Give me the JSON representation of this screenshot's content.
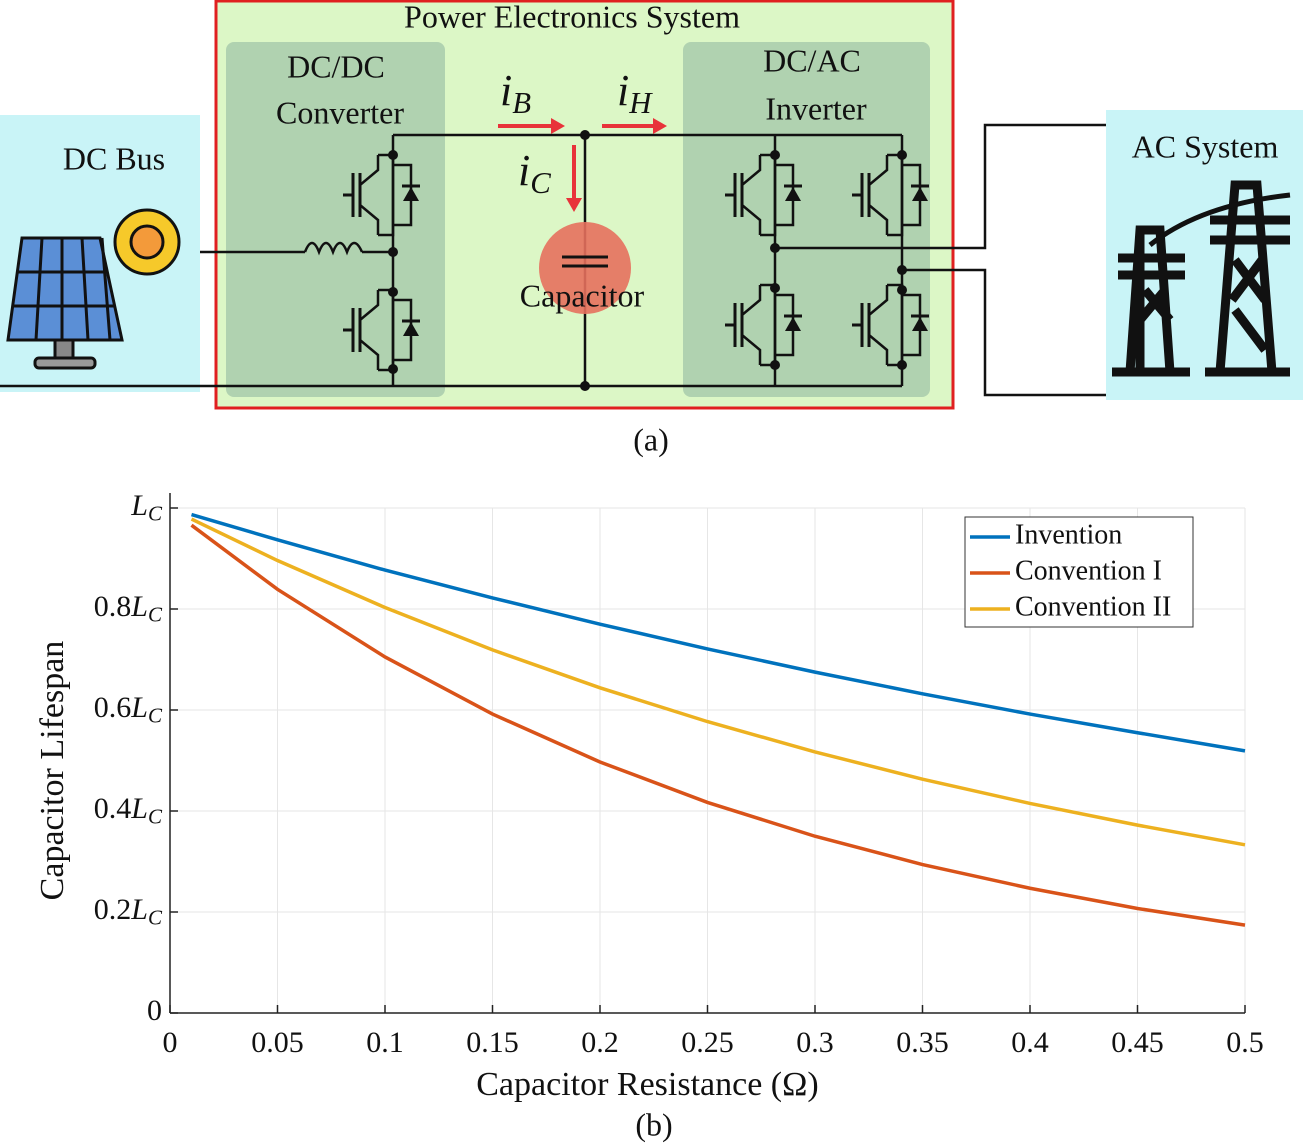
{
  "diagram": {
    "title": "Power Electronics System",
    "dcdc": [
      "DC/DC",
      "Converter"
    ],
    "dcac": [
      "DC/AC",
      "Inverter"
    ],
    "source": "DC Bus",
    "load": "AC System",
    "capacitor": "Capacitor",
    "currents": [
      "iB",
      "iH",
      "iC"
    ],
    "caption": "(a)"
  },
  "chart_data": {
    "type": "line",
    "caption": "(b)",
    "xlabel": "Capacitor Resistance (Ω)",
    "ylabel": "Capacitor Lifespan",
    "x": [
      0.01,
      0.05,
      0.1,
      0.15,
      0.2,
      0.25,
      0.3,
      0.35,
      0.4,
      0.45,
      0.5
    ],
    "series": [
      {
        "name": "Invention",
        "color": "#0072bd",
        "values": [
          0.987,
          0.937,
          0.877,
          0.822,
          0.77,
          0.721,
          0.675,
          0.632,
          0.592,
          0.555,
          0.519
        ]
      },
      {
        "name": "Convention I",
        "color": "#d95319",
        "values": [
          0.966,
          0.839,
          0.705,
          0.592,
          0.497,
          0.417,
          0.35,
          0.294,
          0.247,
          0.207,
          0.174
        ]
      },
      {
        "name": "Convention II",
        "color": "#edb120",
        "values": [
          0.978,
          0.896,
          0.803,
          0.719,
          0.644,
          0.577,
          0.517,
          0.463,
          0.415,
          0.372,
          0.333
        ]
      }
    ],
    "xlim": [
      0,
      0.5
    ],
    "ylim": [
      0,
      1
    ],
    "xticks": [
      0,
      0.05,
      0.1,
      0.15,
      0.2,
      0.25,
      0.3,
      0.35,
      0.4,
      0.45,
      0.5
    ],
    "yticks": [
      0,
      {
        "value": 0.2,
        "label": "0.2LC"
      },
      {
        "value": 0.4,
        "label": "0.4LC"
      },
      {
        "value": 0.6,
        "label": "0.6LC"
      },
      {
        "value": 0.8,
        "label": "0.8LC"
      },
      {
        "value": 1,
        "label": "LC"
      }
    ],
    "grid": true,
    "legend": "upper right"
  }
}
